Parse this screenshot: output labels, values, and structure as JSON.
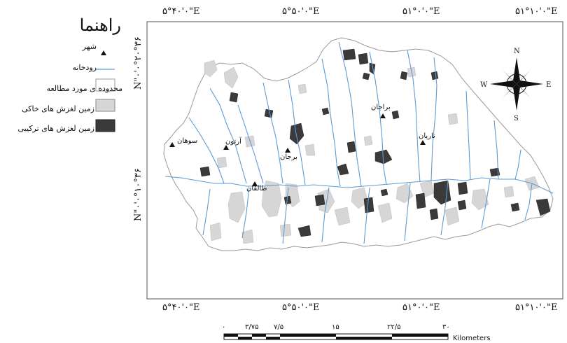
{
  "legend": {
    "title": "راهنما",
    "items": [
      {
        "id": "city",
        "label": "شهر"
      },
      {
        "id": "river",
        "label": "رودخانه"
      },
      {
        "id": "study_area",
        "label": "محدوده ی مورد مطالعه"
      },
      {
        "id": "soil_landslide",
        "label": "زمین لغزش های خاکی"
      },
      {
        "id": "complex_landslide",
        "label": "زمین لغزش های ترکیبی"
      }
    ]
  },
  "colors": {
    "river": "#5b9bd5",
    "soil_landslide": "#d6d6d6",
    "complex_landslide": "#3a3a3a",
    "boundary": "#9a9a9a",
    "frame": "#555555"
  },
  "coords": {
    "top": [
      "۵°۴۰'۰\"E",
      "۵°۵۰'۰\"E",
      "۵۱°۰'۰\"E",
      "۵۱°۱۰'۰\"E"
    ],
    "bottom": [
      "۵°۴۰'۰\"E",
      "۵°۵۰'۰\"E",
      "۵۱°۰'۰\"E",
      "۵۱°۱۰'۰\"E"
    ],
    "left": [
      "N\"۰'۰°۲۰°۳۶",
      "N\"۰'۰°۱۰°۳۶"
    ]
  },
  "cities": [
    {
      "name": "سوهان"
    },
    {
      "name": "آرتون"
    },
    {
      "name": "برجان"
    },
    {
      "name": "طالقان"
    },
    {
      "name": "براجان"
    },
    {
      "name": "ناریان"
    }
  ],
  "north_arrow": {
    "n": "N",
    "s": "S",
    "e": "E",
    "w": "W"
  },
  "scale_bar": {
    "ticks": [
      "۰",
      "۳/۷۵",
      "۷/۵",
      "۱۵",
      "۲۲/۵",
      "۳۰"
    ],
    "unit": "Kilometers"
  }
}
